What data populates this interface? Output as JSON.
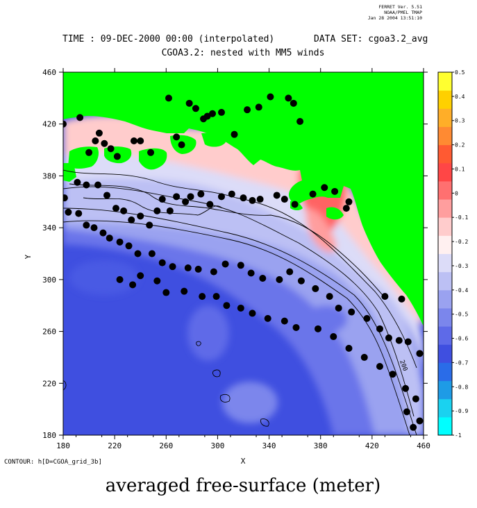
{
  "header": {
    "version_lines": [
      "FERRET Ver. 5.51",
      "NOAA/PMEL TMAP",
      "Jan 28 2004 13:51:10"
    ],
    "time_label": "TIME : 09-DEC-2000 00:00 (interpolated)",
    "dataset_label": "DATA SET: cgoa3.2_avg",
    "subtitle": "CGOA3.2: nested with MM5 winds"
  },
  "footer": {
    "contour_note": "CONTOUR: h[D=CGOA_grid_3b]",
    "caption": "averaged free-surface (meter)"
  },
  "colors": {
    "land": "#00ff00",
    "colorbar": [
      "#00ffff",
      "#1ad2f0",
      "#1e9be6",
      "#2a6ce8",
      "#3f4fe0",
      "#5e6ae8",
      "#7b86ec",
      "#9aa2f0",
      "#bcc0f4",
      "#dcdcf8",
      "#fff0f0",
      "#ffcccc",
      "#ff9e9e",
      "#ff7070",
      "#ff4646",
      "#ff5a32",
      "#ff8a32",
      "#ffae28",
      "#ffd000",
      "#ffff30"
    ]
  },
  "chart_data": {
    "type": "heatmap",
    "title": "CGOA3.2: nested with MM5 winds",
    "xlabel": "X",
    "ylabel": "Y",
    "xlim": [
      180,
      460
    ],
    "ylim": [
      180,
      460
    ],
    "x_ticks": [
      180,
      220,
      260,
      300,
      340,
      380,
      420,
      460
    ],
    "y_ticks": [
      180,
      220,
      260,
      300,
      340,
      380,
      420,
      460
    ],
    "colorbar": {
      "min": -1.0,
      "max": 0.5,
      "tick_labels": [
        "0.5",
        "0.4",
        "0.3",
        "0.2",
        "0.1",
        "0",
        "-0.1",
        "-0.2",
        "-0.3",
        "-0.4",
        "-0.5",
        "-0.6",
        "-0.7",
        "-0.8",
        "-0.9",
        "-1"
      ]
    },
    "contour_levels_labeled": [
      "200"
    ],
    "stations": [
      [
        180,
        420
      ],
      [
        193,
        425
      ],
      [
        200,
        398
      ],
      [
        205,
        407
      ],
      [
        208,
        413
      ],
      [
        212,
        405
      ],
      [
        217,
        401
      ],
      [
        222,
        395
      ],
      [
        235,
        407
      ],
      [
        240,
        407
      ],
      [
        248,
        398
      ],
      [
        262,
        440
      ],
      [
        268,
        410
      ],
      [
        272,
        404
      ],
      [
        278,
        436
      ],
      [
        283,
        432
      ],
      [
        289,
        424
      ],
      [
        292,
        426
      ],
      [
        296,
        428
      ],
      [
        303,
        429
      ],
      [
        313,
        412
      ],
      [
        323,
        431
      ],
      [
        332,
        433
      ],
      [
        341,
        441
      ],
      [
        355,
        440
      ],
      [
        359,
        436
      ],
      [
        364,
        422
      ],
      [
        191,
        375
      ],
      [
        198,
        373
      ],
      [
        207,
        373
      ],
      [
        214,
        365
      ],
      [
        221,
        355
      ],
      [
        227,
        353
      ],
      [
        233,
        346
      ],
      [
        240,
        349
      ],
      [
        247,
        342
      ],
      [
        253,
        353
      ],
      [
        257,
        362
      ],
      [
        263,
        353
      ],
      [
        268,
        364
      ],
      [
        275,
        360
      ],
      [
        279,
        364
      ],
      [
        287,
        366
      ],
      [
        294,
        358
      ],
      [
        303,
        364
      ],
      [
        311,
        366
      ],
      [
        320,
        363
      ],
      [
        327,
        361
      ],
      [
        333,
        362
      ],
      [
        346,
        365
      ],
      [
        352,
        362
      ],
      [
        360,
        358
      ],
      [
        374,
        366
      ],
      [
        383,
        371
      ],
      [
        391,
        368
      ],
      [
        402,
        360
      ],
      [
        400,
        355
      ],
      [
        181,
        363
      ],
      [
        184,
        352
      ],
      [
        192,
        351
      ],
      [
        198,
        342
      ],
      [
        204,
        340
      ],
      [
        211,
        336
      ],
      [
        216,
        332
      ],
      [
        224,
        329
      ],
      [
        231,
        326
      ],
      [
        238,
        320
      ],
      [
        249,
        320
      ],
      [
        257,
        313
      ],
      [
        265,
        310
      ],
      [
        277,
        309
      ],
      [
        285,
        308
      ],
      [
        297,
        306
      ],
      [
        306,
        312
      ],
      [
        318,
        311
      ],
      [
        326,
        305
      ],
      [
        335,
        301
      ],
      [
        348,
        300
      ],
      [
        356,
        306
      ],
      [
        365,
        299
      ],
      [
        376,
        293
      ],
      [
        387,
        287
      ],
      [
        394,
        278
      ],
      [
        404,
        275
      ],
      [
        416,
        270
      ],
      [
        426,
        262
      ],
      [
        433,
        255
      ],
      [
        441,
        253
      ],
      [
        448,
        252
      ],
      [
        457,
        243
      ],
      [
        224,
        300
      ],
      [
        234,
        296
      ],
      [
        240,
        303
      ],
      [
        253,
        299
      ],
      [
        260,
        290
      ],
      [
        274,
        291
      ],
      [
        288,
        287
      ],
      [
        299,
        287
      ],
      [
        307,
        280
      ],
      [
        318,
        278
      ],
      [
        327,
        274
      ],
      [
        339,
        270
      ],
      [
        352,
        268
      ],
      [
        361,
        263
      ],
      [
        378,
        262
      ],
      [
        390,
        256
      ],
      [
        402,
        247
      ],
      [
        414,
        240
      ],
      [
        426,
        233
      ],
      [
        436,
        227
      ],
      [
        446,
        216
      ],
      [
        454,
        208
      ],
      [
        447,
        198
      ],
      [
        457,
        191
      ],
      [
        452,
        186
      ],
      [
        430,
        287
      ],
      [
        443,
        285
      ]
    ]
  }
}
